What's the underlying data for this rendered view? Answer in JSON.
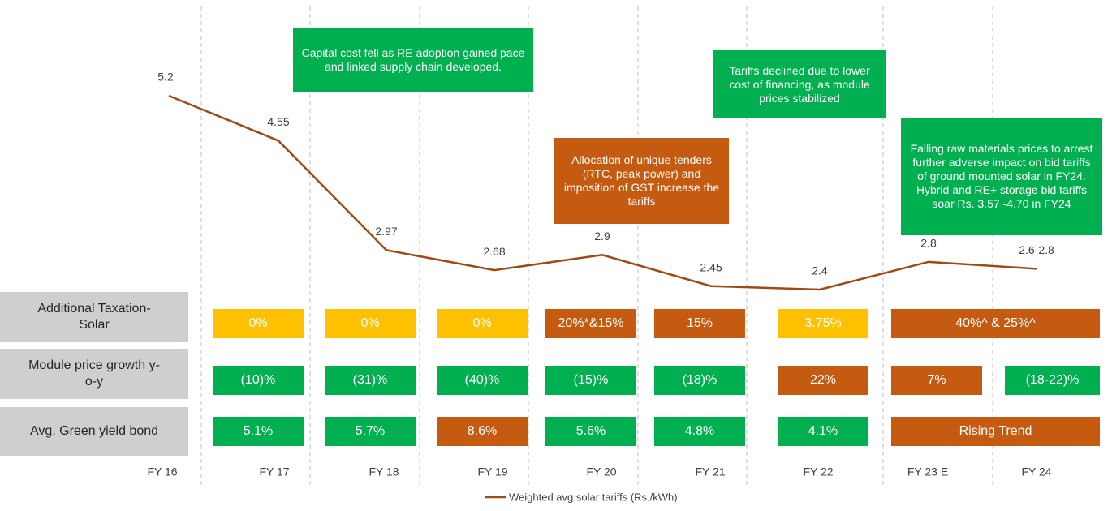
{
  "chart_data": {
    "type": "line",
    "categories": [
      "FY 16",
      "FY 17",
      "FY 18",
      "FY 19",
      "FY 20",
      "FY 21",
      "FY 22",
      "FY 23 E",
      "FY 24"
    ],
    "series": [
      {
        "name": "Weighted avg.solar tariffs (Rs./kWh)",
        "color": "#9e4a16",
        "values": [
          5.2,
          4.55,
          2.97,
          2.68,
          2.9,
          2.45,
          2.4,
          2.8,
          2.7
        ],
        "value_labels": [
          "5.2",
          "4.55",
          "2.97",
          "2.68",
          "2.9",
          "2.45",
          "2.4",
          "2.8",
          "2.6-2.8"
        ]
      }
    ],
    "annotations": [
      {
        "text": "Capital cost fell as RE adoption gained pace  and linked supply chain developed.",
        "color": "#00b050"
      },
      {
        "text": "Allocation of unique tenders  (RTC, peak power) and imposition of GST increase the tariffs",
        "color": "#c55a11"
      },
      {
        "text": "Tariffs declined due to lower cost of financing, as module prices stabilized",
        "color": "#00b050"
      },
      {
        "text": "Falling  raw  materials prices to arrest further adverse impact on bid tariffs of ground mounted solar in FY24. Hybrid and RE+ storage bid tariffs soar Rs. 3.57 -4.70 in FY24",
        "color": "#00b050"
      }
    ],
    "table": {
      "rows": [
        {
          "label": "Additional Taxation-Solar",
          "cells": [
            {
              "label": "0%",
              "color": "#ffc000"
            },
            {
              "label": "0%",
              "color": "#ffc000"
            },
            {
              "label": "0%",
              "color": "#ffc000"
            },
            {
              "label": "20%*&15%",
              "color": "#c55a11"
            },
            {
              "label": "15%",
              "color": "#c55a11"
            },
            {
              "label": "3.75%",
              "color": "#ffc000"
            },
            {
              "label": "40%^ & 25%^",
              "color": "#c55a11"
            }
          ]
        },
        {
          "label": "Module price growth y-o-y",
          "cells": [
            {
              "label": "(10)%",
              "color": "#00b050"
            },
            {
              "label": "(31)%",
              "color": "#00b050"
            },
            {
              "label": "(40)%",
              "color": "#00b050"
            },
            {
              "label": "(15)%",
              "color": "#00b050"
            },
            {
              "label": "(18)%",
              "color": "#00b050"
            },
            {
              "label": "22%",
              "color": "#c55a11"
            },
            {
              "label": "7%",
              "color": "#c55a11"
            },
            {
              "label": "(18-22)%",
              "color": "#00b050"
            }
          ]
        },
        {
          "label": "Avg. Green yield bond",
          "cells": [
            {
              "label": "5.1%",
              "color": "#00b050"
            },
            {
              "label": "5.7%",
              "color": "#00b050"
            },
            {
              "label": "8.6%",
              "color": "#c55a11"
            },
            {
              "label": "5.6%",
              "color": "#00b050"
            },
            {
              "label": "4.8%",
              "color": "#00b050"
            },
            {
              "label": "4.1%",
              "color": "#00b050"
            },
            {
              "label": "Rising Trend",
              "color": "#c55a11"
            }
          ]
        }
      ]
    }
  }
}
